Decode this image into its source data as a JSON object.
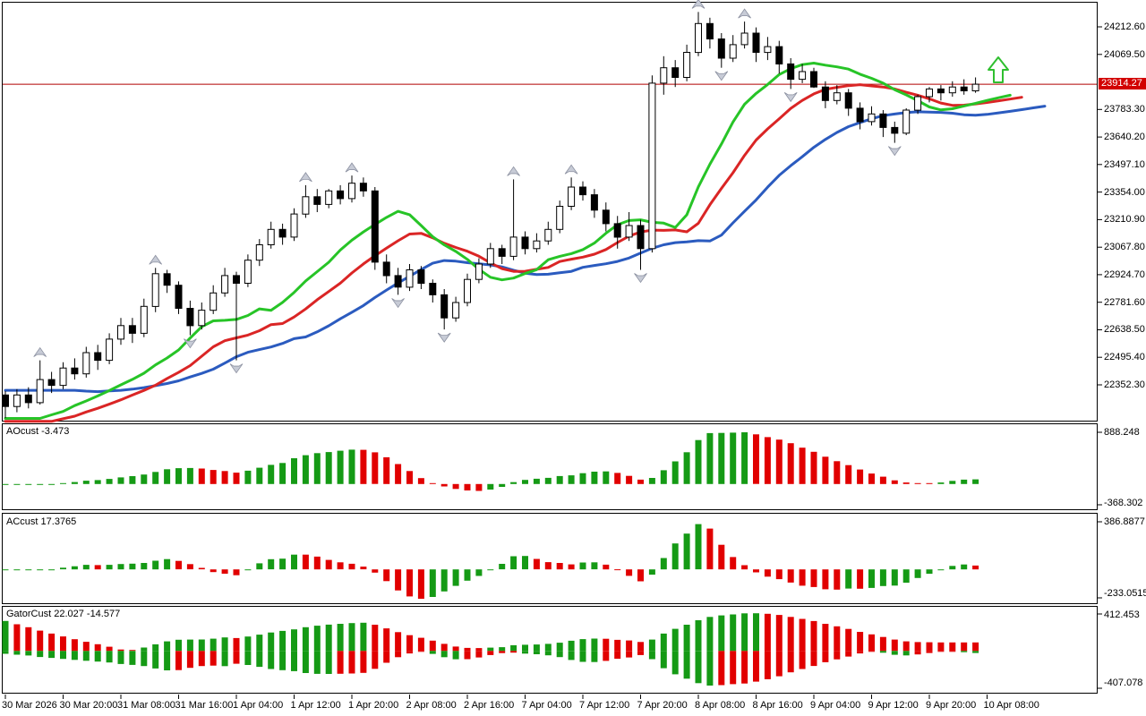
{
  "chart_data": {
    "type": "candlestick",
    "main": {
      "current_price": "23914.27",
      "price_axis_top_value": 24212.6,
      "price_axis_step": 143.1,
      "price_axis_labels": [
        "24212.60",
        "24069.50",
        null,
        "23783.30",
        "23640.20",
        "23497.10",
        "23354.00",
        "23210.90",
        "23067.80",
        "22924.70",
        "22781.60",
        "22638.50",
        "22495.40",
        "22352.30"
      ],
      "candles": [
        [
          22300,
          22320,
          22180,
          22240
        ],
        [
          22240,
          22330,
          22210,
          22300
        ],
        [
          22300,
          22340,
          22230,
          22260
        ],
        [
          22260,
          22480,
          22250,
          22380
        ],
        [
          22380,
          22420,
          22310,
          22350
        ],
        [
          22350,
          22470,
          22330,
          22440
        ],
        [
          22440,
          22490,
          22380,
          22410
        ],
        [
          22410,
          22550,
          22390,
          22520
        ],
        [
          22520,
          22560,
          22430,
          22480
        ],
        [
          22480,
          22620,
          22460,
          22590
        ],
        [
          22590,
          22700,
          22560,
          22660
        ],
        [
          22660,
          22700,
          22570,
          22620
        ],
        [
          22620,
          22800,
          22600,
          22760
        ],
        [
          22760,
          22960,
          22730,
          22930
        ],
        [
          22930,
          22950,
          22830,
          22870
        ],
        [
          22870,
          22890,
          22720,
          22750
        ],
        [
          22750,
          22790,
          22610,
          22660
        ],
        [
          22660,
          22780,
          22640,
          22740
        ],
        [
          22740,
          22870,
          22720,
          22830
        ],
        [
          22830,
          22960,
          22810,
          22920
        ],
        [
          22920,
          22940,
          22480,
          22880
        ],
        [
          22880,
          23030,
          22860,
          23000
        ],
        [
          23000,
          23110,
          22970,
          23080
        ],
        [
          23080,
          23200,
          23060,
          23160
        ],
        [
          23160,
          23190,
          23080,
          23120
        ],
        [
          23120,
          23270,
          23100,
          23240
        ],
        [
          23240,
          23390,
          23220,
          23330
        ],
        [
          23330,
          23370,
          23250,
          23290
        ],
        [
          23290,
          23370,
          23270,
          23360
        ],
        [
          23360,
          23390,
          23290,
          23320
        ],
        [
          23320,
          23440,
          23300,
          23400
        ],
        [
          23400,
          23430,
          23330,
          23360
        ],
        [
          23360,
          23380,
          22950,
          22990
        ],
        [
          22990,
          23030,
          22880,
          22920
        ],
        [
          22920,
          22960,
          22820,
          22860
        ],
        [
          22860,
          22980,
          22840,
          22950
        ],
        [
          22950,
          22970,
          22850,
          22880
        ],
        [
          22880,
          22900,
          22780,
          22820
        ],
        [
          22820,
          22850,
          22640,
          22700
        ],
        [
          22700,
          22810,
          22680,
          22780
        ],
        [
          22780,
          22930,
          22760,
          22900
        ],
        [
          22900,
          23010,
          22880,
          22980
        ],
        [
          22980,
          23090,
          22960,
          23060
        ],
        [
          23060,
          23080,
          22980,
          23020
        ],
        [
          23020,
          23420,
          23000,
          23120
        ],
        [
          23120,
          23150,
          23030,
          23060
        ],
        [
          23060,
          23140,
          23040,
          23100
        ],
        [
          23100,
          23200,
          23080,
          23160
        ],
        [
          23160,
          23310,
          23140,
          23280
        ],
        [
          23280,
          23430,
          23260,
          23380
        ],
        [
          23380,
          23410,
          23310,
          23340
        ],
        [
          23340,
          23370,
          23220,
          23260
        ],
        [
          23260,
          23300,
          23150,
          23190
        ],
        [
          23190,
          23230,
          23060,
          23120
        ],
        [
          23120,
          23250,
          23100,
          23180
        ],
        [
          23180,
          23210,
          22950,
          23060
        ],
        [
          23060,
          23960,
          23040,
          23920
        ],
        [
          23920,
          24060,
          23860,
          24000
        ],
        [
          24000,
          24040,
          23900,
          23950
        ],
        [
          23950,
          24120,
          23930,
          24080
        ],
        [
          24080,
          24290,
          24060,
          24230
        ],
        [
          24230,
          24260,
          24100,
          24150
        ],
        [
          24150,
          24180,
          24000,
          24050
        ],
        [
          24050,
          24170,
          24030,
          24120
        ],
        [
          24120,
          24240,
          24100,
          24180
        ],
        [
          24180,
          24210,
          24030,
          24080
        ],
        [
          24080,
          24160,
          24040,
          24110
        ],
        [
          24110,
          24140,
          23970,
          24020
        ],
        [
          24020,
          24050,
          23890,
          23940
        ],
        [
          23940,
          24020,
          23920,
          23980
        ],
        [
          23980,
          24000,
          23895,
          23900
        ],
        [
          23900,
          23930,
          23790,
          23830
        ],
        [
          23830,
          23910,
          23810,
          23870
        ],
        [
          23870,
          23890,
          23750,
          23790
        ],
        [
          23790,
          23820,
          23680,
          23720
        ],
        [
          23720,
          23800,
          23700,
          23760
        ],
        [
          23760,
          23780,
          23640,
          23690
        ],
        [
          23690,
          23720,
          23610,
          23660
        ],
        [
          23660,
          23790,
          23650,
          23780
        ],
        [
          23780,
          23860,
          23760,
          23850
        ],
        [
          23850,
          23900,
          23820,
          23890
        ],
        [
          23890,
          23910,
          23830,
          23870
        ],
        [
          23870,
          23930,
          23850,
          23900
        ],
        [
          23900,
          23940,
          23860,
          23880
        ],
        [
          23880,
          23950,
          23870,
          23914.27
        ]
      ],
      "alligator": {
        "jaw_period": 13,
        "jaw_shift": 6,
        "teeth_period": 8,
        "teeth_shift": 4,
        "lips_period": 5,
        "lips_shift": 3
      },
      "buy_signal_arrow": {
        "present": true
      }
    },
    "panels": [
      {
        "name": "AOcust",
        "value": "-3.473",
        "axis_top": "888.248",
        "axis_bottom": "-368.302",
        "indicator": "awesome-oscillator"
      },
      {
        "name": "ACcust",
        "value": "17.3765",
        "axis_top": "386.8877",
        "axis_bottom": "-233.0515",
        "indicator": "accelerator-oscillator"
      },
      {
        "name": "GatorCust",
        "value": "22.027 -14.577",
        "axis_top": "412.453",
        "axis_bottom": "-407.078",
        "indicator": "gator-oscillator"
      }
    ],
    "time_axis_labels": [
      "30 Mar 2026",
      "30 Mar 20:00",
      "31 Mar 08:00",
      "31 Mar 16:00",
      "1 Apr 04:00",
      "1 Apr 12:00",
      "1 Apr 20:00",
      "2 Apr 08:00",
      "2 Apr 16:00",
      "7 Apr 04:00",
      "7 Apr 12:00",
      "7 Apr 20:00",
      "8 Apr 08:00",
      "8 Apr 16:00",
      "9 Apr 04:00",
      "9 Apr 12:00",
      "9 Apr 20:00",
      "10 Apr 08:00"
    ]
  },
  "colors": {
    "background": "#FFFFFF",
    "border": "#000000",
    "text": "#000000",
    "bull": "#FFFFFF",
    "bear": "#000000",
    "candle_outline": "#000000",
    "lips_green": "#27C427",
    "teeth_red": "#DA2525",
    "jaw_blue": "#2B5BBF",
    "hist_green": "#159A15",
    "hist_red": "#E10000",
    "price_line": "#B00000",
    "price_tag_bg": "#D20000",
    "price_tag_text": "#FFFFFF",
    "fractal_fill": "#C7CBD6",
    "fractal_stroke": "#8B90A0",
    "buy_arrow": "#2FBF2F"
  }
}
